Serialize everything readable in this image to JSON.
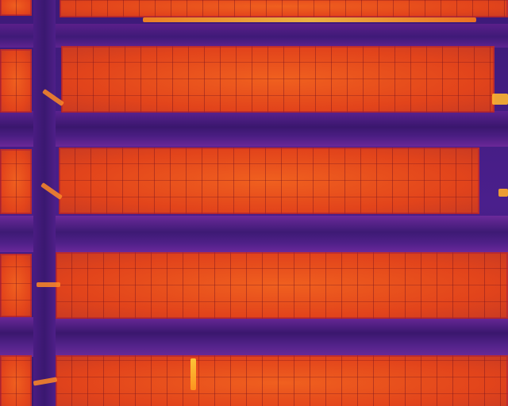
{
  "image": {
    "kind": "thermal-aerial-photo",
    "subject": "solar-panel-rows",
    "palette": {
      "cold": "#3a1870",
      "mid": "#7a2a9a",
      "warm": "#e4421c",
      "hot": "#ffd23a"
    },
    "panel_rows_visible": 5
  }
}
